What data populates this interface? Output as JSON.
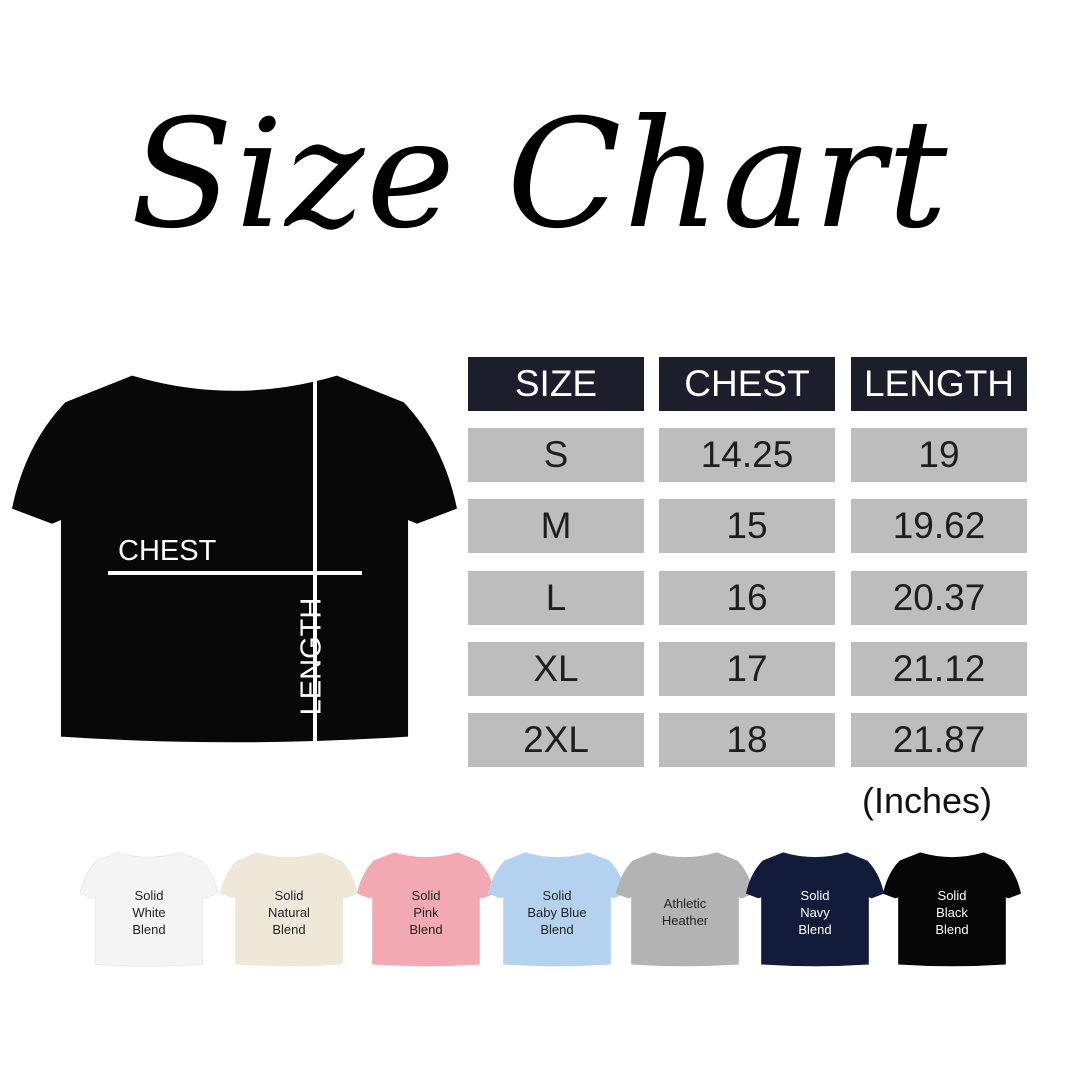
{
  "title": "Size Chart",
  "diagram": {
    "chest_label": "CHEST",
    "length_label": "LENGTH",
    "shirt_color": "#080808"
  },
  "table": {
    "headers": [
      "SIZE",
      "CHEST",
      "LENGTH"
    ],
    "rows": [
      [
        "S",
        "14.25",
        "19"
      ],
      [
        "M",
        "15",
        "19.62"
      ],
      [
        "L",
        "16",
        "20.37"
      ],
      [
        "XL",
        "17",
        "21.12"
      ],
      [
        "2XL",
        "18",
        "21.87"
      ]
    ],
    "unit": "(Inches)",
    "header_color": "#1c1e2b",
    "row_color": "#bdbdbd"
  },
  "colors": [
    {
      "lines": [
        "Solid",
        "White",
        "Blend"
      ],
      "color": "#f4f4f4",
      "text": "#222"
    },
    {
      "lines": [
        "Solid",
        "Natural",
        "Blend"
      ],
      "color": "#efe8d8",
      "text": "#222"
    },
    {
      "lines": [
        "Solid",
        "Pink",
        "Blend"
      ],
      "color": "#f2a9b1",
      "text": "#222"
    },
    {
      "lines": [
        "Solid",
        "Baby Blue",
        "Blend"
      ],
      "color": "#b4d2ef",
      "text": "#222"
    },
    {
      "lines": [
        "Athletic",
        "Heather"
      ],
      "color": "#b3b3b3",
      "text": "#222"
    },
    {
      "lines": [
        "Solid",
        "Navy",
        "Blend"
      ],
      "color": "#121c3a",
      "text": "#fff"
    },
    {
      "lines": [
        "Solid",
        "Black",
        "Blend"
      ],
      "color": "#060606",
      "text": "#fff"
    }
  ]
}
